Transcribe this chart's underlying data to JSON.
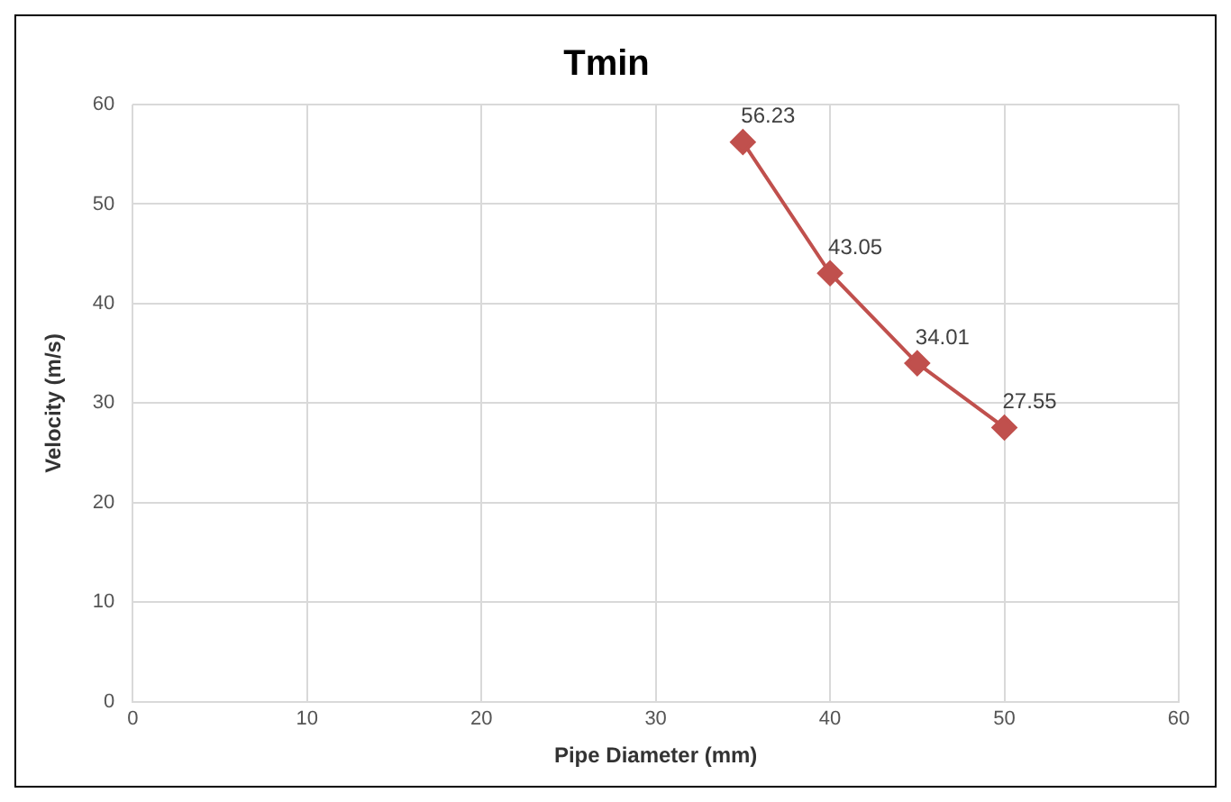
{
  "chart_data": {
    "type": "line",
    "title": "Tmin",
    "xlabel": "Pipe Diameter (mm)",
    "ylabel": "Velocity (m/s)",
    "x": [
      35,
      40,
      45,
      50
    ],
    "series": [
      {
        "color": "#c0504d",
        "values": [
          56.23,
          43.05,
          34.01,
          27.55
        ]
      }
    ],
    "xlim": [
      0,
      60
    ],
    "xticks": [
      0,
      10,
      20,
      30,
      40,
      50,
      60
    ],
    "ylim": [
      0,
      60
    ],
    "yticks": [
      0,
      10,
      20,
      30,
      40,
      50,
      60
    ],
    "grid": true,
    "legend": false,
    "marker": "diamond",
    "line_style": "solid",
    "data_labels": true
  }
}
